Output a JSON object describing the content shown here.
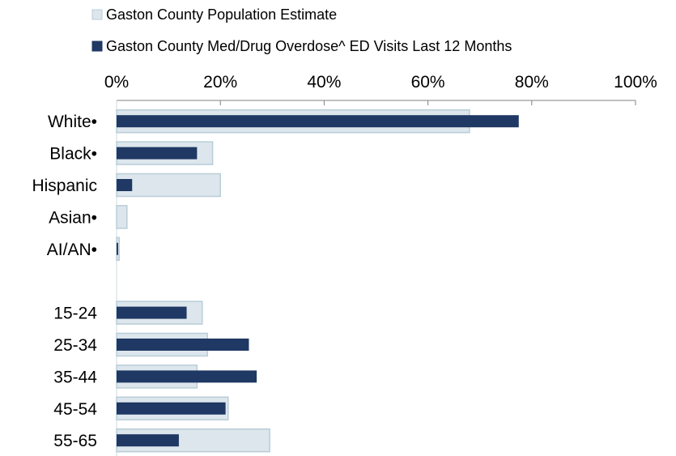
{
  "chart_data": {
    "type": "bar",
    "orientation": "horizontal",
    "categories": [
      "White•",
      "Black•",
      "Hispanic",
      "Asian•",
      "AI/AN•",
      "",
      "15-24",
      "25-34",
      "35-44",
      "45-54",
      "55-65"
    ],
    "series": [
      {
        "name": "Gaston County Population Estimate",
        "color": "#dce6ec",
        "border": "#b9cdd8",
        "values": [
          68,
          18.5,
          20,
          2,
          0.5,
          null,
          16.5,
          17.5,
          15.5,
          21.5,
          29.5
        ]
      },
      {
        "name": "Gaston County Med/Drug Overdose^ ED Visits Last 12 Months",
        "color": "#1f3864",
        "values": [
          77.5,
          15.5,
          3,
          0,
          0.3,
          null,
          13.5,
          25.5,
          27,
          21,
          12
        ]
      }
    ],
    "xlim": [
      0,
      100
    ],
    "xticks": [
      "0%",
      "20%",
      "40%",
      "60%",
      "80%",
      "100%"
    ],
    "title": "",
    "xlabel": "",
    "ylabel": "",
    "legend_position": "top-left",
    "grid": false
  }
}
